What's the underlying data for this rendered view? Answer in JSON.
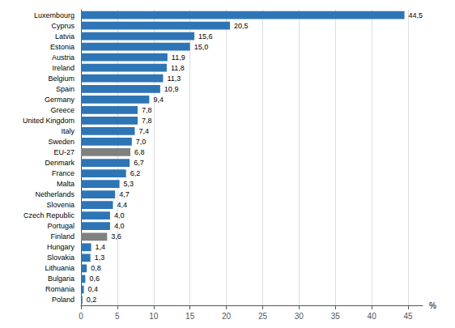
{
  "chart_data": {
    "type": "bar",
    "orientation": "horizontal",
    "categories": [
      "Luxembourg",
      "Cyprus",
      "Latvia",
      "Estonia",
      "Austria",
      "Ireland",
      "Belgium",
      "Spain",
      "Germany",
      "Greece",
      "United Kingdom",
      "Italy",
      "Sweden",
      "EU-27",
      "Denmark",
      "France",
      "Malta",
      "Netherlands",
      "Slovenia",
      "Czech Republic",
      "Portugal",
      "Finland",
      "Hungary",
      "Slovakia",
      "Lithuania",
      "Bulgaria",
      "Romania",
      "Poland"
    ],
    "values": [
      44.5,
      20.5,
      15.6,
      15.0,
      11.9,
      11.8,
      11.3,
      10.9,
      9.4,
      7.8,
      7.8,
      7.4,
      7.0,
      6.8,
      6.7,
      6.2,
      5.3,
      4.7,
      4.4,
      4.0,
      4.0,
      3.6,
      1.4,
      1.3,
      0.8,
      0.6,
      0.4,
      0.2
    ],
    "value_labels": [
      "44,5",
      "20,5",
      "15,6",
      "15,0",
      "11,9",
      "11,8",
      "11,3",
      "10,9",
      "9,4",
      "7,8",
      "7,8",
      "7,4",
      "7,0",
      "6,8",
      "6,7",
      "6,2",
      "5,3",
      "4,7",
      "4,4",
      "4,0",
      "4,0",
      "3,6",
      "1,4",
      "1,3",
      "0,8",
      "0,6",
      "0,4",
      "0,2"
    ],
    "colors": [
      "#2E75B6",
      "#2E75B6",
      "#2E75B6",
      "#2E75B6",
      "#2E75B6",
      "#2E75B6",
      "#2E75B6",
      "#2E75B6",
      "#2E75B6",
      "#2E75B6",
      "#2E75B6",
      "#2E75B6",
      "#2E75B6",
      "#808080",
      "#2E75B6",
      "#2E75B6",
      "#2E75B6",
      "#2E75B6",
      "#2E75B6",
      "#2E75B6",
      "#2E75B6",
      "#808080",
      "#2E75B6",
      "#2E75B6",
      "#2E75B6",
      "#2E75B6",
      "#2E75B6",
      "#2E75B6"
    ],
    "xlabel": "%",
    "xlim": [
      0,
      47
    ],
    "xticks": [
      0,
      5,
      10,
      15,
      20,
      25,
      30,
      35,
      40,
      45
    ],
    "grid": true,
    "data_labels": true
  }
}
